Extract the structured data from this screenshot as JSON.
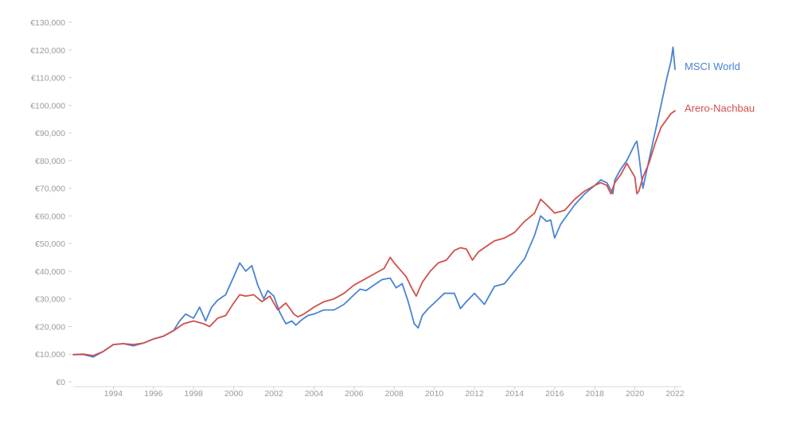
{
  "chart_data": {
    "type": "line",
    "grid": false,
    "ylim": [
      0,
      130000
    ],
    "xlim": [
      1992.0,
      2022.0
    ],
    "y_ticks": [
      {
        "value": 0,
        "label": "€0"
      },
      {
        "value": 10000,
        "label": "€10,000"
      },
      {
        "value": 20000,
        "label": "€20,000"
      },
      {
        "value": 30000,
        "label": "€30,000"
      },
      {
        "value": 40000,
        "label": "€40,000"
      },
      {
        "value": 50000,
        "label": "€50,000"
      },
      {
        "value": 60000,
        "label": "€60,000"
      },
      {
        "value": 70000,
        "label": "€70,000"
      },
      {
        "value": 80000,
        "label": "€80,000"
      },
      {
        "value": 90000,
        "label": "€90,000"
      },
      {
        "value": 100000,
        "label": "€100,000"
      },
      {
        "value": 110000,
        "label": "€110,000"
      },
      {
        "value": 120000,
        "label": "€120,000"
      },
      {
        "value": 130000,
        "label": "€130,000"
      }
    ],
    "x_ticks": [
      {
        "value": 1994,
        "label": "1994"
      },
      {
        "value": 1996,
        "label": "1996"
      },
      {
        "value": 1998,
        "label": "1998"
      },
      {
        "value": 2000,
        "label": "2000"
      },
      {
        "value": 2002,
        "label": "2002"
      },
      {
        "value": 2004,
        "label": "2004"
      },
      {
        "value": 2006,
        "label": "2006"
      },
      {
        "value": 2008,
        "label": "2008"
      },
      {
        "value": 2010,
        "label": "2010"
      },
      {
        "value": 2012,
        "label": "2012"
      },
      {
        "value": 2014,
        "label": "2014"
      },
      {
        "value": 2016,
        "label": "2016"
      },
      {
        "value": 2018,
        "label": "2018"
      },
      {
        "value": 2020,
        "label": "2020"
      },
      {
        "value": 2022,
        "label": "2022"
      }
    ],
    "series": [
      {
        "name": "MSCI World",
        "color": "#4a83d4",
        "x": [
          1992.0,
          1992.5,
          1993.0,
          1993.5,
          1994.0,
          1994.5,
          1995.0,
          1995.5,
          1996.0,
          1996.5,
          1997.0,
          1997.3,
          1997.6,
          1998.0,
          1998.3,
          1998.6,
          1998.9,
          1999.2,
          1999.6,
          2000.0,
          2000.3,
          2000.6,
          2000.9,
          2001.2,
          2001.5,
          2001.7,
          2002.0,
          2002.3,
          2002.6,
          2002.9,
          2003.1,
          2003.4,
          2003.7,
          2004.0,
          2004.5,
          2005.0,
          2005.5,
          2006.0,
          2006.3,
          2006.6,
          2007.0,
          2007.4,
          2007.8,
          2008.1,
          2008.4,
          2008.7,
          2009.0,
          2009.2,
          2009.4,
          2009.7,
          2010.0,
          2010.5,
          2011.0,
          2011.3,
          2011.6,
          2012.0,
          2012.5,
          2013.0,
          2013.5,
          2014.0,
          2014.5,
          2015.0,
          2015.3,
          2015.6,
          2015.8,
          2016.0,
          2016.3,
          2016.6,
          2017.0,
          2017.5,
          2018.0,
          2018.3,
          2018.6,
          2018.9,
          2019.0,
          2019.3,
          2019.6,
          2020.0,
          2020.1,
          2020.2,
          2020.4,
          2020.7,
          2021.0,
          2021.3,
          2021.6,
          2021.8,
          2021.9,
          2022.0
        ],
        "values": [
          9800,
          9900,
          9000,
          11000,
          13500,
          13800,
          13000,
          14000,
          15500,
          16500,
          18500,
          22000,
          24500,
          23000,
          27000,
          22000,
          27000,
          29500,
          31500,
          38000,
          43000,
          40000,
          42000,
          35000,
          30000,
          33000,
          31000,
          25000,
          21000,
          22000,
          20500,
          22500,
          24000,
          24500,
          26000,
          26000,
          28000,
          31500,
          33500,
          33000,
          35000,
          37000,
          37500,
          34000,
          35500,
          29000,
          21000,
          19500,
          24000,
          26500,
          28500,
          32000,
          32000,
          26500,
          29000,
          32000,
          28000,
          34500,
          35500,
          40000,
          44500,
          53000,
          60000,
          58000,
          58500,
          52000,
          57000,
          60000,
          64000,
          68000,
          71000,
          73000,
          72000,
          68000,
          73000,
          77000,
          80000,
          86000,
          87000,
          82000,
          70000,
          80000,
          90000,
          100000,
          110000,
          116000,
          121000,
          113000
        ]
      },
      {
        "name": "Arero-Nachbau",
        "color": "#d0504b",
        "x": [
          1992.0,
          1992.5,
          1993.0,
          1993.5,
          1994.0,
          1994.5,
          1995.0,
          1995.5,
          1996.0,
          1996.5,
          1997.0,
          1997.5,
          1998.0,
          1998.5,
          1998.8,
          1999.2,
          1999.6,
          2000.0,
          2000.3,
          2000.6,
          2001.0,
          2001.4,
          2001.8,
          2002.2,
          2002.6,
          2003.0,
          2003.2,
          2003.5,
          2004.0,
          2004.5,
          2005.0,
          2005.5,
          2006.0,
          2006.5,
          2007.0,
          2007.5,
          2007.8,
          2008.0,
          2008.3,
          2008.6,
          2008.9,
          2009.1,
          2009.4,
          2009.8,
          2010.2,
          2010.6,
          2011.0,
          2011.3,
          2011.6,
          2011.9,
          2012.2,
          2012.6,
          2013.0,
          2013.5,
          2014.0,
          2014.5,
          2015.0,
          2015.3,
          2015.6,
          2016.0,
          2016.5,
          2017.0,
          2017.5,
          2018.0,
          2018.3,
          2018.6,
          2018.8,
          2019.0,
          2019.3,
          2019.6,
          2020.0,
          2020.1,
          2020.2,
          2020.4,
          2020.7,
          2021.0,
          2021.3,
          2021.6,
          2021.8,
          2022.0
        ],
        "values": [
          9900,
          10000,
          9500,
          11000,
          13500,
          13800,
          13500,
          14000,
          15500,
          16500,
          18500,
          21000,
          22000,
          21000,
          20000,
          23000,
          24000,
          28500,
          31500,
          31000,
          31500,
          29000,
          31000,
          26000,
          28500,
          24500,
          23500,
          24500,
          27000,
          29000,
          30000,
          32000,
          35000,
          37000,
          39000,
          41000,
          45000,
          43000,
          40500,
          38000,
          33500,
          31000,
          36000,
          40000,
          43000,
          44000,
          47500,
          48500,
          48000,
          44000,
          47000,
          49000,
          51000,
          52000,
          54000,
          58000,
          61000,
          66000,
          64000,
          61000,
          62000,
          66000,
          69000,
          71000,
          72000,
          71000,
          68000,
          72000,
          75000,
          79000,
          74000,
          68000,
          69000,
          74000,
          79000,
          86000,
          92000,
          95000,
          97000,
          98000
        ]
      }
    ]
  }
}
